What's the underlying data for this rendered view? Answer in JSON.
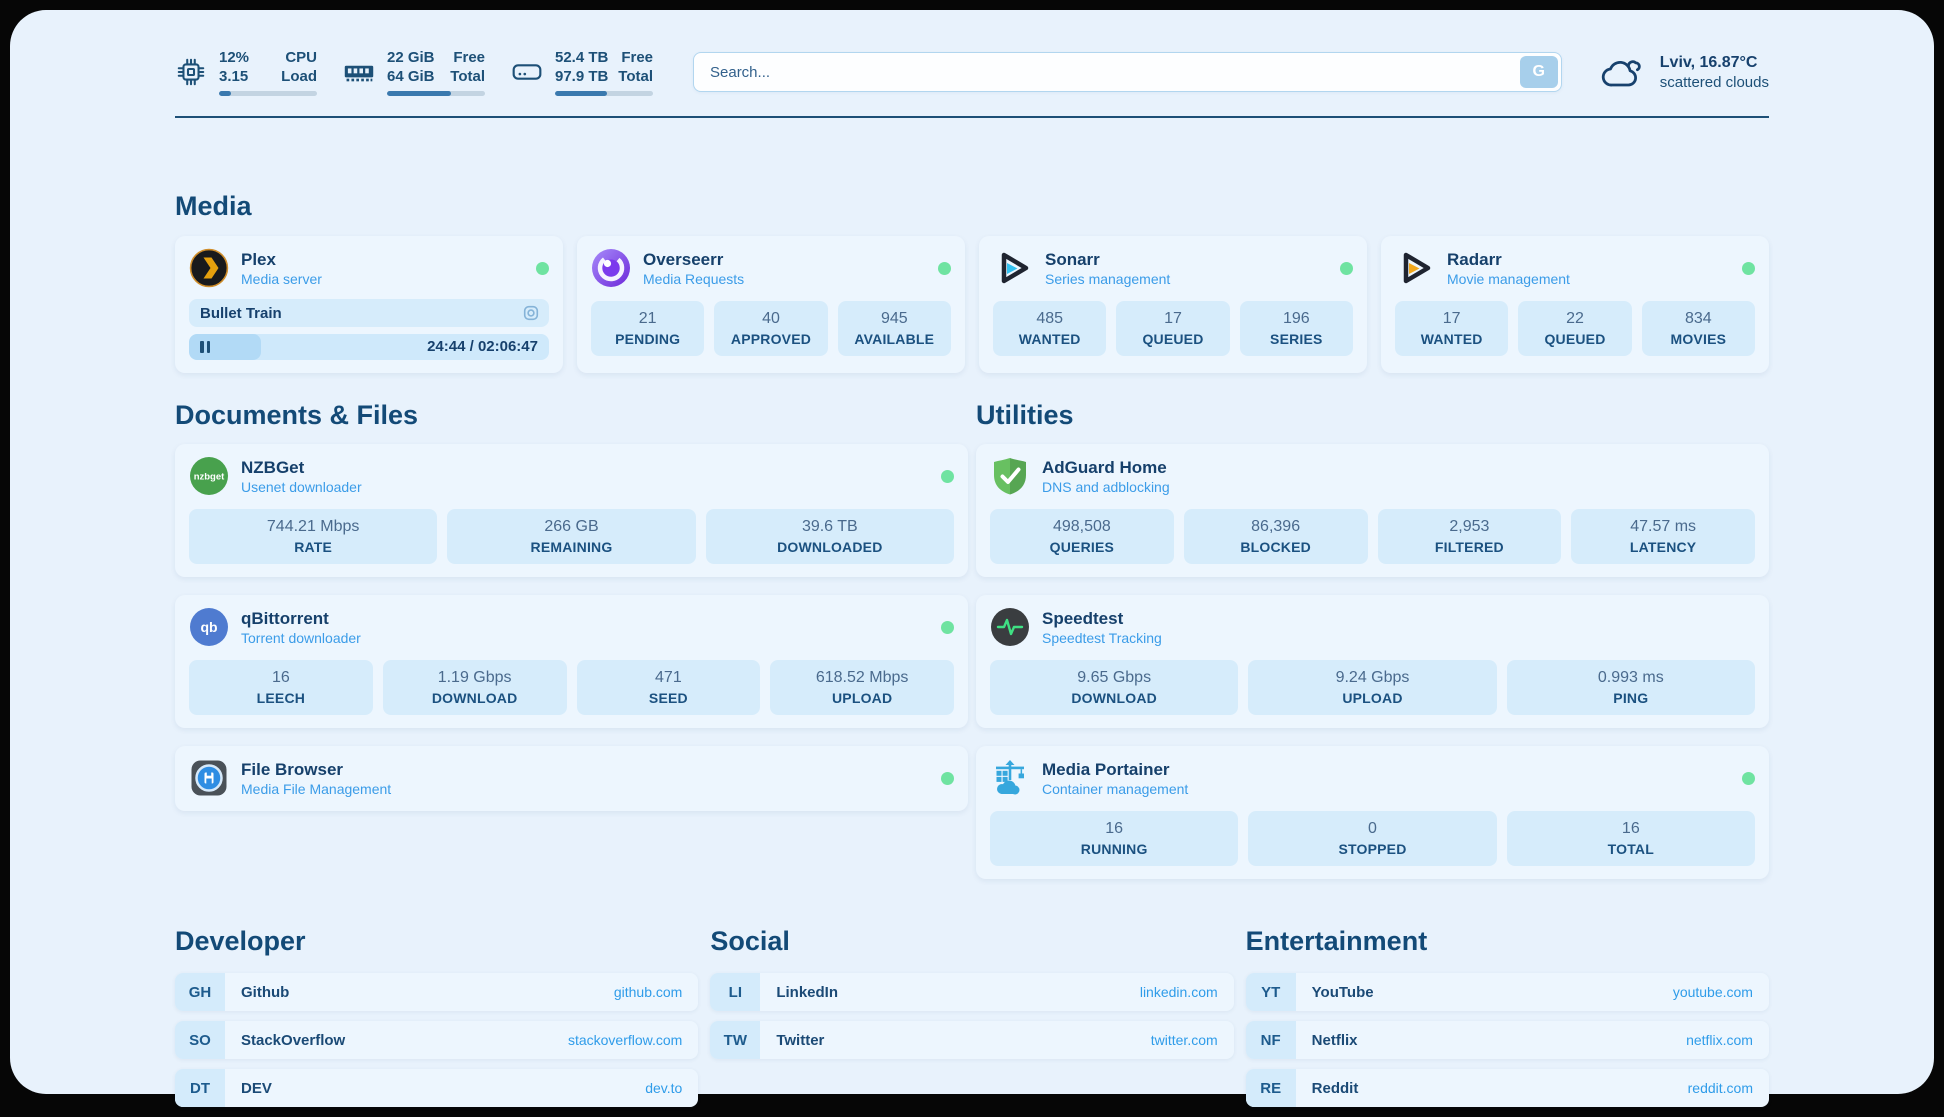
{
  "colors": {
    "accent_blue": "#2f9ce9",
    "status_green": "#6fe3a1",
    "navy": "#17416d",
    "pill_bg": "#d6ecfb",
    "page_bg": "#e8f2fc"
  },
  "header": {
    "stats": [
      {
        "icon": "cpu-icon",
        "value1": "12%",
        "value2": "3.15",
        "label1": "CPU",
        "label2": "Load",
        "progress": 12
      },
      {
        "icon": "ram-icon",
        "value1": "22 GiB",
        "value2": "64 GiB",
        "label1": "Free",
        "label2": "Total",
        "progress": 65
      },
      {
        "icon": "disk-icon",
        "value1": "52.4 TB",
        "value2": "97.9 TB",
        "label1": "Free",
        "label2": "Total",
        "progress": 53
      }
    ],
    "search": {
      "placeholder": "Search...",
      "button_label": "G"
    },
    "weather": {
      "icon": "cloud-icon",
      "location": "Lviv, 16.87°C",
      "condition": "scattered clouds"
    }
  },
  "sections": {
    "media": {
      "title": "Media",
      "apps": [
        {
          "name": "Plex",
          "subtitle": "Media server",
          "icon": "plex-icon",
          "online": true,
          "now_playing": "Bullet Train",
          "time": "24:44 / 02:06:47",
          "progress": 20
        },
        {
          "name": "Overseerr",
          "subtitle": "Media Requests",
          "icon": "overseerr-icon",
          "online": true,
          "stats": [
            {
              "value": "21",
              "label": "PENDING"
            },
            {
              "value": "40",
              "label": "APPROVED"
            },
            {
              "value": "945",
              "label": "AVAILABLE"
            }
          ]
        },
        {
          "name": "Sonarr",
          "subtitle": "Series management",
          "icon": "sonarr-icon",
          "online": true,
          "stats": [
            {
              "value": "485",
              "label": "WANTED"
            },
            {
              "value": "17",
              "label": "QUEUED"
            },
            {
              "value": "196",
              "label": "SERIES"
            }
          ]
        },
        {
          "name": "Radarr",
          "subtitle": "Movie management",
          "icon": "radarr-icon",
          "online": true,
          "stats": [
            {
              "value": "17",
              "label": "WANTED"
            },
            {
              "value": "22",
              "label": "QUEUED"
            },
            {
              "value": "834",
              "label": "MOVIES"
            }
          ]
        }
      ]
    },
    "documents": {
      "title": "Documents & Files",
      "apps": [
        {
          "name": "NZBGet",
          "subtitle": "Usenet downloader",
          "icon": "nzbget-icon",
          "online": true,
          "stats": [
            {
              "value": "744.21 Mbps",
              "label": "RATE"
            },
            {
              "value": "266 GB",
              "label": "REMAINING"
            },
            {
              "value": "39.6 TB",
              "label": "DOWNLOADED"
            }
          ]
        },
        {
          "name": "qBittorrent",
          "subtitle": "Torrent downloader",
          "icon": "qbittorrent-icon",
          "online": true,
          "stats": [
            {
              "value": "16",
              "label": "LEECH"
            },
            {
              "value": "1.19 Gbps",
              "label": "DOWNLOAD"
            },
            {
              "value": "471",
              "label": "SEED"
            },
            {
              "value": "618.52 Mbps",
              "label": "UPLOAD"
            }
          ]
        },
        {
          "name": "File Browser",
          "subtitle": "Media File Management",
          "icon": "filebrowser-icon",
          "online": true
        }
      ]
    },
    "utilities": {
      "title": "Utilities",
      "apps": [
        {
          "name": "AdGuard Home",
          "subtitle": "DNS and adblocking",
          "icon": "adguard-icon",
          "online": false,
          "stats": [
            {
              "value": "498,508",
              "label": "QUERIES"
            },
            {
              "value": "86,396",
              "label": "BLOCKED"
            },
            {
              "value": "2,953",
              "label": "FILTERED"
            },
            {
              "value": "47.57 ms",
              "label": "LATENCY"
            }
          ]
        },
        {
          "name": "Speedtest",
          "subtitle": "Speedtest Tracking",
          "icon": "speedtest-icon",
          "online": false,
          "stats": [
            {
              "value": "9.65 Gbps",
              "label": "DOWNLOAD"
            },
            {
              "value": "9.24 Gbps",
              "label": "UPLOAD"
            },
            {
              "value": "0.993 ms",
              "label": "PING"
            }
          ]
        },
        {
          "name": "Media Portainer",
          "subtitle": "Container management",
          "icon": "portainer-icon",
          "online": true,
          "stats": [
            {
              "value": "16",
              "label": "RUNNING"
            },
            {
              "value": "0",
              "label": "STOPPED"
            },
            {
              "value": "16",
              "label": "TOTAL"
            }
          ]
        }
      ]
    }
  },
  "links": [
    {
      "title": "Developer",
      "items": [
        {
          "tag": "GH",
          "name": "Github",
          "url": "github.com"
        },
        {
          "tag": "SO",
          "name": "StackOverflow",
          "url": "stackoverflow.com"
        },
        {
          "tag": "DT",
          "name": "DEV",
          "url": "dev.to"
        }
      ]
    },
    {
      "title": "Social",
      "items": [
        {
          "tag": "LI",
          "name": "LinkedIn",
          "url": "linkedin.com"
        },
        {
          "tag": "TW",
          "name": "Twitter",
          "url": "twitter.com"
        }
      ]
    },
    {
      "title": "Entertainment",
      "items": [
        {
          "tag": "YT",
          "name": "YouTube",
          "url": "youtube.com"
        },
        {
          "tag": "NF",
          "name": "Netflix",
          "url": "netflix.com"
        },
        {
          "tag": "RE",
          "name": "Reddit",
          "url": "reddit.com"
        }
      ]
    }
  ]
}
